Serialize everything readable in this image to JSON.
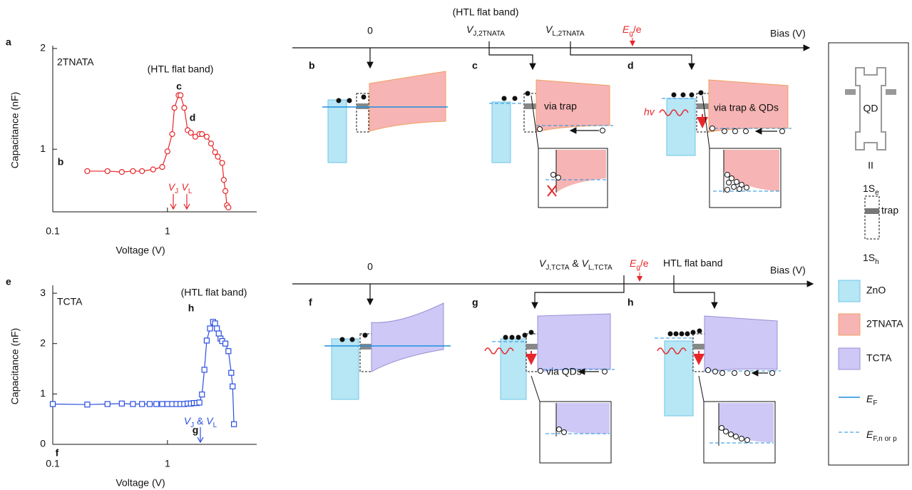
{
  "chart_data": [
    {
      "type": "line",
      "panel": "a",
      "xscale": "log",
      "yscale": "log",
      "xlabel": "Voltage (V)",
      "ylabel": "Capacitance (nF)",
      "xlim": [
        0.1,
        6
      ],
      "ylim": [
        0.65,
        2
      ],
      "xticks": [
        0.1,
        1
      ],
      "yticks": [
        1,
        2
      ],
      "x": [
        0.2,
        0.3,
        0.4,
        0.5,
        0.6,
        0.75,
        0.9,
        1.0,
        1.1,
        1.15,
        1.25,
        1.3,
        1.4,
        1.5,
        1.6,
        1.75,
        1.9,
        2.0,
        2.2,
        2.4,
        2.6,
        2.75,
        3.0,
        3.1,
        3.2,
        3.3,
        3.4
      ],
      "series": [
        {
          "name": "2TNATA",
          "color": "#e8262a",
          "marker": "circle",
          "values": [
            0.86,
            0.86,
            0.855,
            0.86,
            0.86,
            0.87,
            0.885,
            0.985,
            1.11,
            1.33,
            1.45,
            1.45,
            1.33,
            1.14,
            1.12,
            1.09,
            1.11,
            1.11,
            1.09,
            1.04,
            0.98,
            0.95,
            0.91,
            0.81,
            0.75,
            0.68,
            0.67
          ]
        }
      ],
      "annotations": [
        "(HTL flat band)",
        "c",
        "d",
        "b",
        [
          {
            "text": "V"
          },
          {
            "sub": "J"
          }
        ],
        [
          {
            "text": "V"
          },
          {
            "sub": "L"
          }
        ]
      ]
    },
    {
      "type": "line",
      "panel": "e",
      "xscale": "log",
      "xlabel": "Voltage (V)",
      "ylabel": "Capacitance (nF)",
      "xlim": [
        0.1,
        6
      ],
      "ylim": [
        0,
        3.1
      ],
      "xticks": [
        0.1,
        1
      ],
      "yticks": [
        0,
        1,
        2,
        3
      ],
      "x": [
        0.1,
        0.2,
        0.3,
        0.4,
        0.5,
        0.6,
        0.7,
        0.8,
        0.9,
        1.0,
        1.1,
        1.2,
        1.3,
        1.4,
        1.5,
        1.6,
        1.7,
        1.8,
        1.9,
        2.0,
        2.1,
        2.2,
        2.35,
        2.5,
        2.6,
        2.7,
        2.8,
        2.9,
        3.0,
        3.2,
        3.4,
        3.6,
        3.7,
        3.8
      ],
      "series": [
        {
          "name": "TCTA",
          "color": "#2a4ee0",
          "marker": "square",
          "values": [
            0.8,
            0.79,
            0.8,
            0.81,
            0.8,
            0.8,
            0.8,
            0.8,
            0.8,
            0.8,
            0.8,
            0.8,
            0.8,
            0.8,
            0.81,
            0.81,
            0.82,
            0.82,
            0.83,
            0.99,
            1.48,
            2.06,
            2.3,
            2.43,
            2.4,
            2.3,
            2.2,
            2.1,
            2.05,
            2.0,
            1.85,
            1.42,
            1.15,
            0.4
          ]
        }
      ],
      "annotations": [
        "(HTL flat band)",
        "h",
        "f",
        "g",
        [
          {
            "text": "V"
          },
          {
            "sub": "J"
          },
          {
            "text": " & "
          },
          {
            "text": "V"
          },
          {
            "sub": "L"
          }
        ]
      ]
    }
  ],
  "diagram": {
    "top": {
      "note": "(HTL flat band)",
      "zero": "0",
      "vj": [
        {
          "text": "V"
        },
        {
          "sub": "J,2TNATA"
        }
      ],
      "vl": [
        {
          "text": "V"
        },
        {
          "sub": "L,2TNATA"
        }
      ],
      "eg": [
        {
          "text": "E"
        },
        {
          "sub": "g"
        },
        {
          "text": "/e"
        }
      ],
      "axis": "Bias (V)",
      "panels": [
        "b",
        "c",
        "d"
      ],
      "via_c": "via trap",
      "hv": "hv",
      "via_d": "via trap & QDs"
    },
    "bottom": {
      "zero": "0",
      "vjl": [
        {
          "text": "V"
        },
        {
          "sub": "J,TCTA"
        },
        {
          "text": " & "
        },
        {
          "text": "V"
        },
        {
          "sub": "L,TCTA"
        }
      ],
      "eg": [
        {
          "text": "E"
        },
        {
          "sub": "g"
        },
        {
          "text": "/e"
        }
      ],
      "note": "HTL flat band",
      "axis": "Bias (V)",
      "panels": [
        "f",
        "g",
        "h"
      ],
      "via_g": "via QDs"
    }
  },
  "legend": {
    "qd": "QD",
    "equiv": "II",
    "s_e": [
      {
        "text": "1S"
      },
      {
        "sub": "e"
      }
    ],
    "trap": "trap",
    "s_h": [
      {
        "text": "1S"
      },
      {
        "sub": "h"
      }
    ],
    "zno": "ZnO",
    "tnata": "2TNATA",
    "tcta": "TCTA",
    "ef": [
      {
        "text": "E"
      },
      {
        "sub": "F"
      }
    ],
    "efnp": [
      {
        "text": "E"
      },
      {
        "sub": "F,n or p"
      }
    ]
  }
}
